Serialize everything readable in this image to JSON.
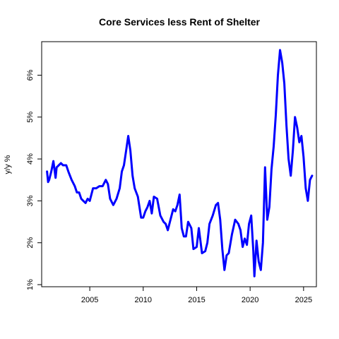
{
  "chart_data": {
    "type": "line",
    "title": "Core Services less Rent of Shelter",
    "xlabel": "",
    "ylabel": "y/y %",
    "xlim": [
      2000.5,
      2026.2
    ],
    "ylim": [
      0.95,
      6.8
    ],
    "x_ticks": [
      2005,
      2010,
      2015,
      2020,
      2025
    ],
    "x_tick_labels": [
      "2005",
      "2010",
      "2015",
      "2020",
      "2025"
    ],
    "y_ticks": [
      1,
      2,
      3,
      4,
      5,
      6
    ],
    "y_tick_labels": [
      "1%",
      "2%",
      "3%",
      "4%",
      "5%",
      "6%"
    ],
    "grid": false,
    "legend": "none",
    "series": [
      {
        "color": "#0000ff",
        "x": [
          2001.0,
          2001.1,
          2001.2,
          2001.4,
          2001.6,
          2001.8,
          2001.9,
          2002.1,
          2002.3,
          2002.5,
          2002.8,
          2003.0,
          2003.3,
          2003.6,
          2003.8,
          2004.0,
          2004.2,
          2004.4,
          2004.6,
          2004.8,
          2005.0,
          2005.3,
          2005.6,
          2005.9,
          2006.2,
          2006.5,
          2006.7,
          2006.9,
          2007.2,
          2007.5,
          2007.8,
          2008.0,
          2008.2,
          2008.4,
          2008.6,
          2008.8,
          2009.0,
          2009.2,
          2009.5,
          2009.8,
          2010.0,
          2010.2,
          2010.4,
          2010.6,
          2010.8,
          2011.0,
          2011.3,
          2011.6,
          2011.9,
          2012.1,
          2012.3,
          2012.5,
          2012.8,
          2013.0,
          2013.2,
          2013.4,
          2013.6,
          2013.8,
          2014.0,
          2014.2,
          2014.5,
          2014.7,
          2015.0,
          2015.2,
          2015.5,
          2015.8,
          2016.0,
          2016.2,
          2016.5,
          2016.8,
          2017.0,
          2017.2,
          2017.4,
          2017.6,
          2017.8,
          2018.0,
          2018.3,
          2018.6,
          2018.9,
          2019.1,
          2019.3,
          2019.5,
          2019.7,
          2019.9,
          2020.1,
          2020.3,
          2020.4,
          2020.6,
          2020.8,
          2021.0,
          2021.2,
          2021.4,
          2021.6,
          2021.8,
          2022.0,
          2022.2,
          2022.4,
          2022.6,
          2022.8,
          2023.0,
          2023.2,
          2023.4,
          2023.6,
          2023.8,
          2024.0,
          2024.2,
          2024.4,
          2024.6,
          2024.8,
          2025.0,
          2025.2,
          2025.4,
          2025.6,
          2025.8
        ],
        "y": [
          3.7,
          3.45,
          3.5,
          3.7,
          3.95,
          3.55,
          3.8,
          3.85,
          3.9,
          3.85,
          3.85,
          3.7,
          3.5,
          3.35,
          3.2,
          3.2,
          3.05,
          3.0,
          2.95,
          3.05,
          3.0,
          3.3,
          3.3,
          3.35,
          3.35,
          3.5,
          3.4,
          3.05,
          2.9,
          3.05,
          3.3,
          3.7,
          3.85,
          4.2,
          4.55,
          4.2,
          3.6,
          3.3,
          3.1,
          2.6,
          2.6,
          2.75,
          2.85,
          3.0,
          2.7,
          3.1,
          3.05,
          2.65,
          2.5,
          2.45,
          2.3,
          2.5,
          2.8,
          2.75,
          2.9,
          3.15,
          2.35,
          2.15,
          2.15,
          2.5,
          2.35,
          1.85,
          1.9,
          2.35,
          1.75,
          1.8,
          2.0,
          2.45,
          2.65,
          2.9,
          2.95,
          2.55,
          1.85,
          1.35,
          1.7,
          1.75,
          2.2,
          2.55,
          2.45,
          2.3,
          1.9,
          2.1,
          1.95,
          2.45,
          2.65,
          1.8,
          1.2,
          2.05,
          1.55,
          1.35,
          2.0,
          3.8,
          2.55,
          2.85,
          3.75,
          4.3,
          5.05,
          6.0,
          6.6,
          6.3,
          5.8,
          4.8,
          4.0,
          3.6,
          4.2,
          5.0,
          4.75,
          4.4,
          4.55,
          4.05,
          3.3,
          3.0,
          3.5,
          3.6
        ]
      }
    ]
  }
}
